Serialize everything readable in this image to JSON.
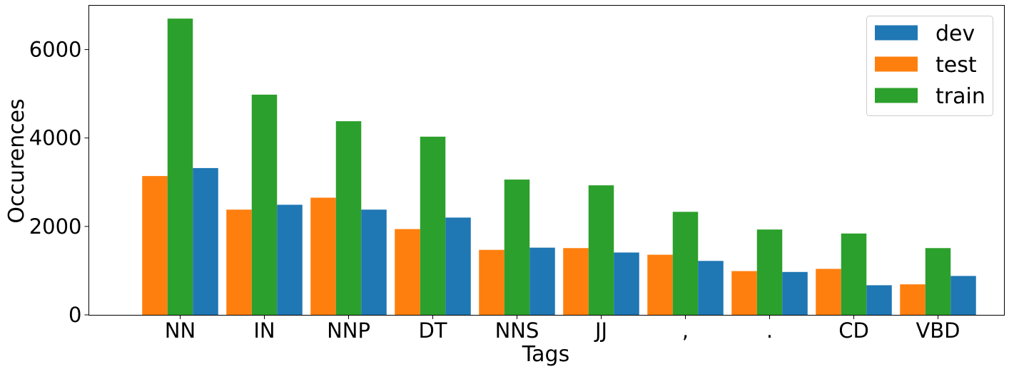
{
  "chart_data": {
    "type": "bar",
    "xlabel": "Tags",
    "ylabel": "Occurences",
    "ylim": [
      0,
      7000
    ],
    "yticks": [
      0,
      2000,
      4000,
      6000
    ],
    "categories": [
      "NN",
      "IN",
      "NNP",
      "DT",
      "NNS",
      "JJ",
      ",",
      ".",
      "CD",
      "VBD"
    ],
    "series": [
      {
        "name": "dev",
        "color": "#1f77b4",
        "values": [
          3320,
          2490,
          2380,
          2200,
          1520,
          1410,
          1220,
          970,
          670,
          880
        ]
      },
      {
        "name": "test",
        "color": "#ff7f0e",
        "values": [
          3140,
          2380,
          2650,
          1940,
          1470,
          1510,
          1360,
          990,
          1040,
          690
        ]
      },
      {
        "name": "train",
        "color": "#2ca02c",
        "values": [
          6700,
          4980,
          4380,
          4030,
          3060,
          2930,
          2330,
          1930,
          1840,
          1510
        ]
      }
    ],
    "draw_order": [
      "test",
      "train",
      "dev"
    ],
    "legend_position": "top-right",
    "grid": false
  }
}
